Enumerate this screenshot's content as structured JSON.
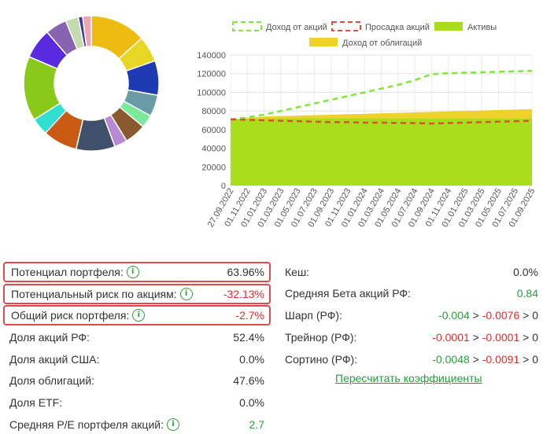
{
  "donut": {
    "colors": [
      "#eebb11",
      "#e8d624",
      "#1f3bb3",
      "#6b9aa8",
      "#7be89a",
      "#8a5a2e",
      "#b98ad3",
      "#41506a",
      "#c95a11",
      "#2fe0d2",
      "#88c91a",
      "#5a2ae0",
      "#8763b0",
      "#c6dab0",
      "#3c3c9c",
      "#f0a4b6"
    ],
    "shares": [
      13,
      6,
      8,
      5,
      3,
      5,
      3,
      9,
      8,
      4,
      15,
      7,
      5,
      3,
      1,
      2
    ]
  },
  "chart_data": {
    "type": "area",
    "x": [
      "27.09.2022",
      "01.11.2022",
      "01.01.2023",
      "01.03.2023",
      "01.05.2023",
      "01.07.2023",
      "01.09.2023",
      "01.11.2023",
      "01.01.2024",
      "01.03.2024",
      "01.05.2024",
      "01.07.2024",
      "01.09.2024",
      "01.11.2024",
      "01.01.2025",
      "01.03.2025",
      "01.05.2025",
      "01.07.2025",
      "01.09.2025"
    ],
    "ylim": [
      0,
      140000
    ],
    "yticks": [
      "0",
      "20000",
      "40000",
      "60000",
      "80000",
      "100000",
      "120000",
      "140000"
    ],
    "grid": true,
    "legend_placement": "top",
    "series": [
      {
        "name": "Доход от акций",
        "style": "dashed-line",
        "color": "#7ee83a",
        "values": [
          71000,
          73000,
          76000,
          80000,
          84000,
          88000,
          92000,
          96000,
          100000,
          104000,
          108000,
          113000,
          119500,
          120500,
          121000,
          121500,
          122000,
          122500,
          123000
        ]
      },
      {
        "name": "Просадка акций",
        "style": "dashed-line",
        "color": "#e84a3a",
        "values": [
          71000,
          70500,
          70000,
          69500,
          69000,
          68500,
          68000,
          68000,
          67500,
          67500,
          67000,
          67000,
          66500,
          67000,
          67500,
          68000,
          68500,
          69000,
          69500
        ]
      },
      {
        "name": "Активы",
        "style": "area",
        "color": "#a8de1a",
        "values": [
          71000,
          71500,
          72000,
          72000,
          72000,
          72000,
          72000,
          72000,
          72000,
          72000,
          72000,
          72000,
          72000,
          72000,
          72000,
          72000,
          72000,
          72000,
          72000
        ]
      },
      {
        "name": "Доход от облигаций",
        "style": "area",
        "color": "#eed22a",
        "values": [
          71000,
          72500,
          74000,
          74500,
          75000,
          75500,
          76000,
          76500,
          77000,
          77500,
          78000,
          78500,
          79000,
          79500,
          80000,
          80500,
          81000,
          81500,
          82000
        ]
      }
    ]
  },
  "left_metrics": [
    {
      "label": "Потенциал портфеля:",
      "value": "63.96%",
      "info": true,
      "highlight": true,
      "tone": "dark"
    },
    {
      "label": "Потенциальный риск по акциям:",
      "value": "-32.13%",
      "info": true,
      "highlight": true,
      "tone": "red"
    },
    {
      "label": "Общий риск портфеля:",
      "value": "-2.7%",
      "info": true,
      "highlight": true,
      "tone": "red"
    },
    {
      "label": "Доля акций РФ:",
      "value": "52.4%",
      "info": false,
      "highlight": false,
      "tone": "dark"
    },
    {
      "label": "Доля акций США:",
      "value": "0.0%",
      "info": false,
      "highlight": false,
      "tone": "dark"
    },
    {
      "label": "Доля облигаций:",
      "value": "47.6%",
      "info": false,
      "highlight": false,
      "tone": "dark"
    },
    {
      "label": "Доля ETF:",
      "value": "0.0%",
      "info": false,
      "highlight": false,
      "tone": "dark"
    },
    {
      "label": "Средняя P/E портфеля акций:",
      "value": "2.7",
      "info": true,
      "highlight": false,
      "tone": "green"
    }
  ],
  "right_metrics": [
    {
      "label": "Кеш:",
      "parts": [
        {
          "text": "0.0%",
          "tone": "dark"
        }
      ]
    },
    {
      "label": "Средняя Бета акций РФ:",
      "parts": [
        {
          "text": "0.84",
          "tone": "green"
        }
      ]
    },
    {
      "label": "Шарп (РФ):",
      "parts": [
        {
          "text": "-0.004",
          "tone": "green"
        },
        {
          "text": " > ",
          "tone": "dark"
        },
        {
          "text": "-0.0076",
          "tone": "red"
        },
        {
          "text": " > 0",
          "tone": "dark"
        }
      ]
    },
    {
      "label": "Трейнор (РФ):",
      "parts": [
        {
          "text": "-0.0001",
          "tone": "red"
        },
        {
          "text": " > ",
          "tone": "dark"
        },
        {
          "text": "-0.0001",
          "tone": "red"
        },
        {
          "text": " > 0",
          "tone": "dark"
        }
      ]
    },
    {
      "label": "Сортино (РФ):",
      "parts": [
        {
          "text": "-0.0048",
          "tone": "green"
        },
        {
          "text": " > ",
          "tone": "dark"
        },
        {
          "text": "-0.0091",
          "tone": "red"
        },
        {
          "text": " > 0",
          "tone": "dark"
        }
      ]
    }
  ],
  "recalc_link": "Пересчитать коэффициенты",
  "info_glyph": "i"
}
